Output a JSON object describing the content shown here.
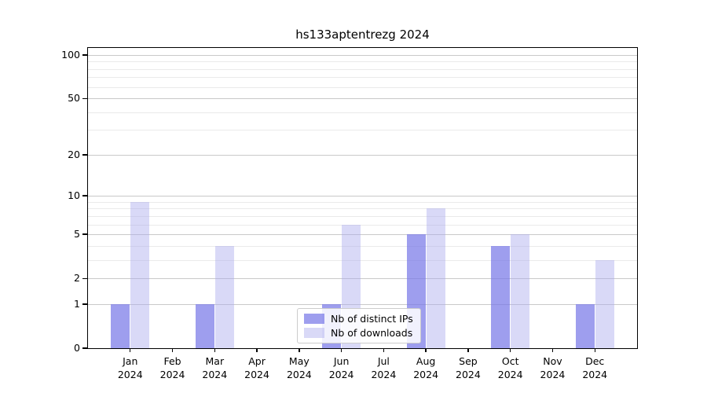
{
  "title": "hs133aptentrezg 2024",
  "chart_data": {
    "type": "bar",
    "title": "hs133aptentrezg 2024",
    "categories": [
      "Jan",
      "Feb",
      "Mar",
      "Apr",
      "May",
      "Jun",
      "Jul",
      "Aug",
      "Sep",
      "Oct",
      "Nov",
      "Dec"
    ],
    "year": "2024",
    "series": [
      {
        "name": "Nb of distinct IPs",
        "color": "#7878e8",
        "alpha": 0.72,
        "values": [
          1,
          0,
          1,
          0,
          0,
          1,
          0,
          5,
          0,
          4,
          0,
          1
        ]
      },
      {
        "name": "Nb of downloads",
        "color": "#aaaaee",
        "alpha": 0.45,
        "values": [
          9,
          0,
          4,
          0,
          0,
          6,
          0,
          8,
          0,
          5,
          0,
          3
        ]
      }
    ],
    "yscale": "log10(1+x)",
    "ylim": [
      0,
      112
    ],
    "y_ticks": [
      0,
      1,
      2,
      5,
      10,
      20,
      50,
      100
    ],
    "y_minor_ticks": [
      3,
      4,
      6,
      7,
      8,
      9,
      30,
      40,
      60,
      70,
      80,
      90
    ],
    "grid": true,
    "legend_position": "lower center-left",
    "xlabel": "",
    "ylabel": ""
  },
  "colors": {
    "bar_ips_composite": "#9f9fee",
    "bar_downloads_composite": "#d9d9f6",
    "grid_major": "#c9c9c9",
    "grid_minor": "#eaeaea",
    "axis_frame": "#000000",
    "legend_border": "#cccccc",
    "background": "#ffffff"
  }
}
